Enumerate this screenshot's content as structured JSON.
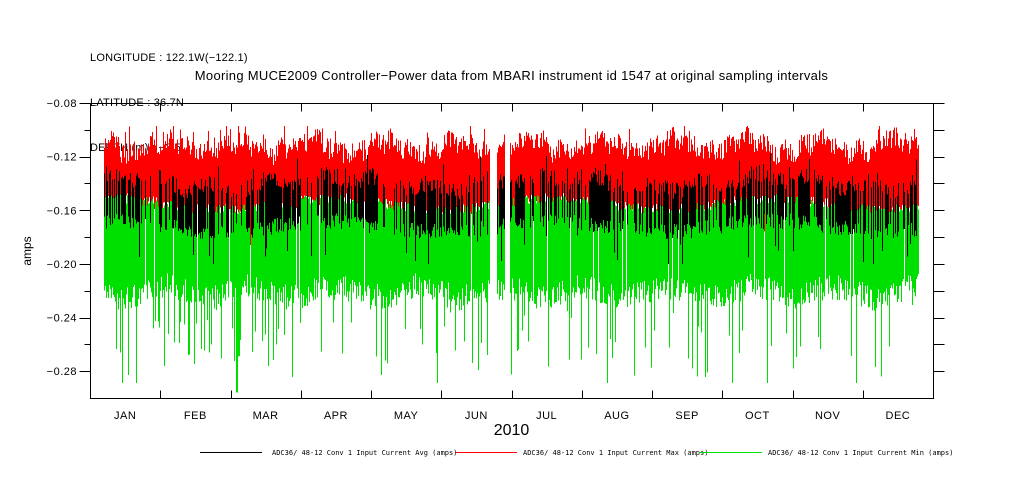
{
  "header": {
    "longitude": "LONGITUDE : 122.1W(−122.1)",
    "latitude": "LATITUDE : 36.7N",
    "depth": "DEPTH (m) : −2.5"
  },
  "chart_data": {
    "type": "line",
    "title": "Mooring MUCE2009 Controller−Power data from MBARI instrument id 1547 at original sampling intervals",
    "xlabel": "2010",
    "ylabel": "amps",
    "grid": false,
    "x_axis": {
      "unit": "month",
      "tick_labels": [
        "JAN",
        "FEB",
        "MAR",
        "APR",
        "MAY",
        "JUN",
        "JUL",
        "AUG",
        "SEP",
        "OCT",
        "NOV",
        "DEC"
      ],
      "range_months": [
        0,
        12
      ],
      "data_start_month": 0.2,
      "data_end_month": 11.78,
      "gaps_month": [
        [
          5.68,
          5.79
        ],
        [
          5.9,
          5.97
        ]
      ]
    },
    "y_axis": {
      "range": [
        -0.3,
        -0.08
      ],
      "major_tick_values": [
        -0.08,
        -0.12,
        -0.16,
        -0.2,
        -0.24,
        -0.28
      ],
      "major_tick_labels": [
        "−0.08",
        "−0.12",
        "−0.16",
        "−0.20",
        "−0.24",
        "−0.28"
      ],
      "minor_step": 0.02
    },
    "series": [
      {
        "name": "ADC36/ 48-12 Conv 1 Input Current Avg (amps)",
        "stat": "avg",
        "color": "#000000",
        "band_top_amps": -0.139,
        "band_bottom_amps": -0.172,
        "jitter_amps": 0.013,
        "spike_min_amps": -0.2,
        "draw_density": 0.59
      },
      {
        "name": "ADC36/ 48-12 Conv 1 Input Current Max (amps)",
        "stat": "max",
        "color": "#ff0000",
        "band_top_amps": -0.112,
        "band_bottom_amps": -0.156,
        "jitter_amps": 0.016,
        "peak_max_amps": -0.097,
        "spike_min_amps": -0.186,
        "draw_density": 1.0
      },
      {
        "name": "ADC36/ 48-12 Conv 1 Input Current Min (amps)",
        "stat": "min",
        "color": "#00e000",
        "band_top_amps": -0.1555,
        "band_bottom_amps": -0.221,
        "jitter_amps": 0.02,
        "spike_min_amps": -0.285,
        "deepest_spike": {
          "month": 2.09,
          "amps": -0.296
        },
        "draw_density": 0.96
      }
    ],
    "legend": [
      {
        "label": "ADC36/ 48-12 Conv 1 Input Current Avg (amps)",
        "color": "#000000"
      },
      {
        "label": "ADC36/ 48-12 Conv 1 Input Current Max (amps)",
        "color": "#ff0000"
      },
      {
        "label": "ADC36/ 48-12 Conv 1 Input Current Min (amps)",
        "color": "#00e000"
      }
    ]
  }
}
